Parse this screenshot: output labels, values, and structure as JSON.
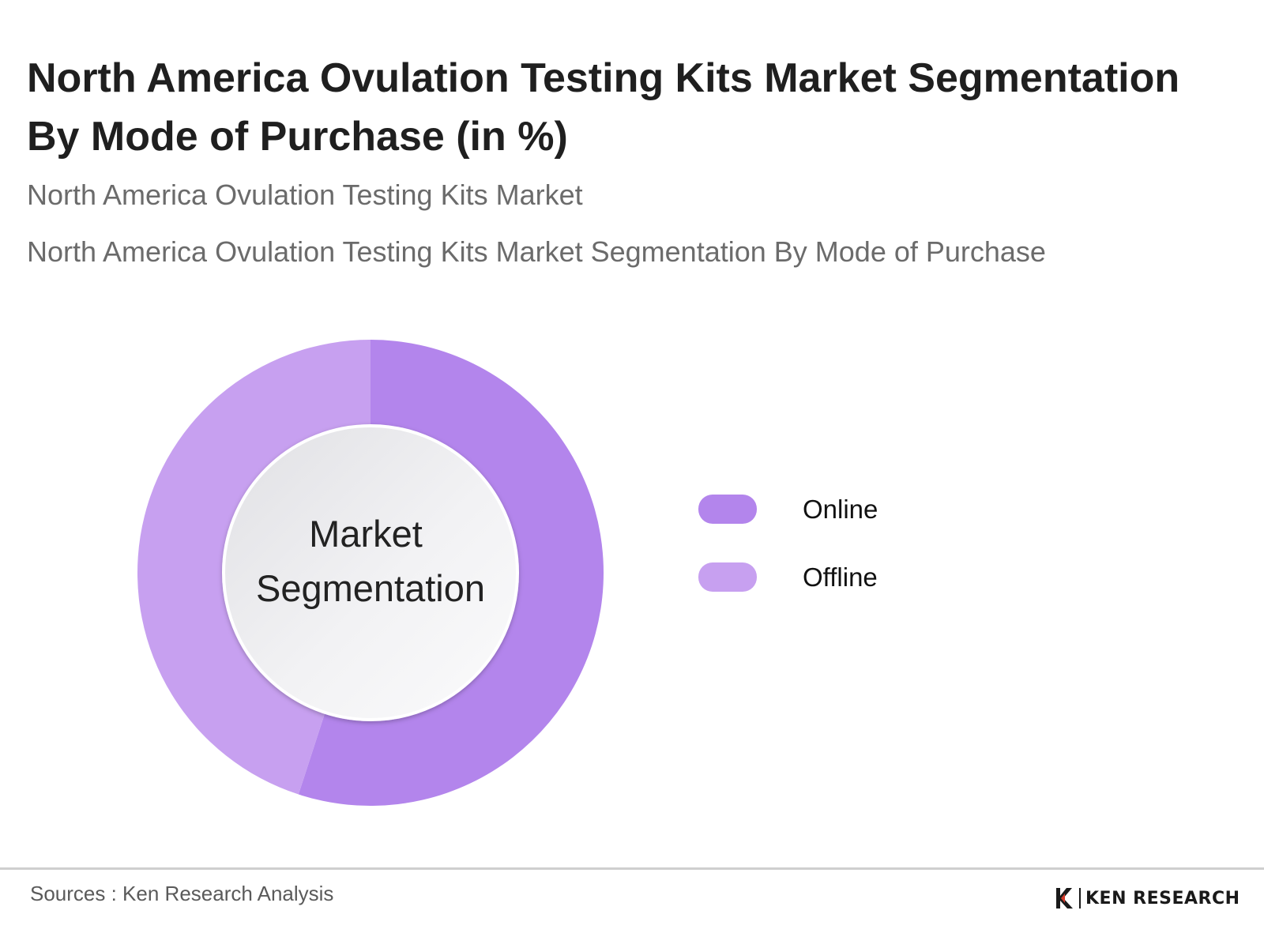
{
  "title": "North America Ovulation Testing Kits Market Segmentation By Mode of Purchase (in %)",
  "subtitle_1": "North America Ovulation Testing Kits Market",
  "subtitle_2": "North America Ovulation Testing Kits Market Segmentation By Mode of Purchase",
  "chart_data": {
    "type": "pie",
    "variant": "donut",
    "center_label_line1": "Market",
    "center_label_line2": "Segmentation",
    "categories": [
      "Online",
      "Offline"
    ],
    "values": [
      55,
      45
    ],
    "colors": [
      "#b385ec",
      "#c7a0f0"
    ],
    "legend": {
      "placement": "right"
    }
  },
  "footer": {
    "source": "Sources : Ken Research Analysis",
    "logo_text": "KEN RESEARCH",
    "logo_icon": "ken-research-logo-icon"
  }
}
